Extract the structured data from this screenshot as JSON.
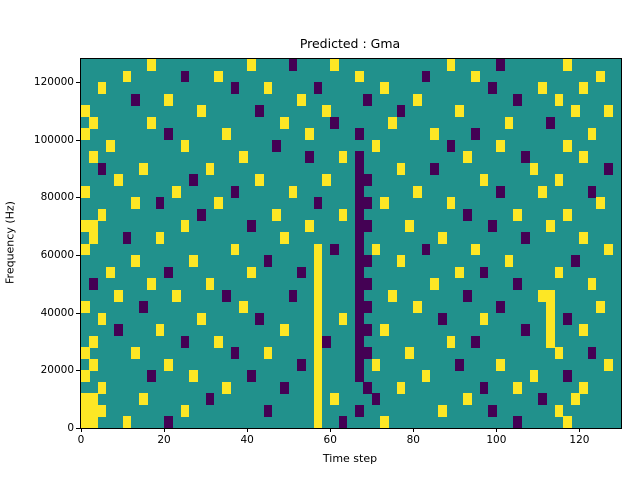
{
  "chart_data": {
    "type": "heatmap",
    "title": "Predicted : Gma",
    "xlabel": "Time step",
    "ylabel": "Frequency (Hz)",
    "xlim": [
      0,
      130
    ],
    "ylim": [
      0,
      128000
    ],
    "xticks": [
      0,
      20,
      40,
      60,
      80,
      100,
      120
    ],
    "yticks": [
      0,
      20000,
      40000,
      60000,
      80000,
      100000,
      120000
    ],
    "colors": {
      "background_mid": "#21918c",
      "high": "#fde725",
      "low": "#440154",
      "axes": "#000000",
      "figure_background": "#ffffff"
    },
    "grid_cols": 65,
    "grid_rows": 32,
    "x_units_per_col": 2,
    "hz_per_row": 4000,
    "cell_encoding": {
      "y": "high (yellow)",
      "p": "low (dark purple)",
      "unlisted": "mid (teal)"
    },
    "cells_note": "rows ordered top (124000-128000 Hz) to bottom (0-4000 Hz); column index * 2 = time step",
    "cells": [
      {
        "y": [
          8,
          20,
          30,
          44,
          58
        ],
        "p": [
          25,
          50
        ]
      },
      {
        "y": [
          5,
          16,
          33,
          47,
          62
        ],
        "p": [
          12,
          41
        ]
      },
      {
        "y": [
          2,
          22,
          36,
          55,
          60
        ],
        "p": [
          18,
          28,
          49
        ]
      },
      {
        "y": [
          10,
          26,
          40,
          57
        ],
        "p": [
          6,
          34,
          52
        ]
      },
      {
        "y": [
          0,
          14,
          29,
          45,
          59,
          63
        ],
        "p": [
          21,
          38
        ]
      },
      {
        "y": [
          1,
          8,
          24,
          37,
          51
        ],
        "p": [
          30,
          56
        ]
      },
      {
        "y": [
          0,
          17,
          27,
          42,
          61
        ],
        "p": [
          10,
          33,
          47
        ]
      },
      {
        "y": [
          3,
          12,
          35,
          50,
          58
        ],
        "p": [
          23,
          44
        ]
      },
      {
        "y": [
          1,
          19,
          31,
          46,
          60
        ],
        "p": [
          27,
          33,
          53
        ]
      },
      {
        "y": [
          7,
          15,
          38,
          54
        ],
        "p": [
          2,
          33,
          42,
          63
        ]
      },
      {
        "y": [
          4,
          21,
          29,
          48,
          57
        ],
        "p": [
          13,
          33,
          34
        ]
      },
      {
        "y": [
          0,
          11,
          25,
          40,
          55
        ],
        "p": [
          18,
          33,
          50,
          61
        ]
      },
      {
        "y": [
          6,
          16,
          36,
          44,
          62
        ],
        "p": [
          9,
          28,
          33,
          34
        ]
      },
      {
        "y": [
          2,
          23,
          31,
          52,
          58
        ],
        "p": [
          14,
          33,
          46
        ]
      },
      {
        "y": [
          0,
          1,
          12,
          27,
          39,
          56
        ],
        "p": [
          20,
          33,
          34,
          49
        ]
      },
      {
        "y": [
          1,
          9,
          24,
          43,
          60
        ],
        "p": [
          5,
          33,
          53
        ]
      },
      {
        "y": [
          0,
          18,
          28,
          35,
          47,
          63
        ],
        "p": [
          30,
          33,
          41
        ]
      },
      {
        "y": [
          6,
          13,
          28,
          38,
          51
        ],
        "p": [
          22,
          33,
          34,
          59
        ]
      },
      {
        "y": [
          3,
          20,
          28,
          45,
          57
        ],
        "p": [
          10,
          26,
          33,
          48
        ]
      },
      {
        "y": [
          8,
          15,
          28,
          42,
          61
        ],
        "p": [
          1,
          33,
          34,
          52
        ]
      },
      {
        "y": [
          4,
          11,
          28,
          37,
          55,
          56
        ],
        "p": [
          17,
          25,
          33,
          46
        ]
      },
      {
        "y": [
          0,
          19,
          28,
          40,
          56,
          62
        ],
        "p": [
          7,
          33,
          34,
          50
        ]
      },
      {
        "y": [
          2,
          14,
          28,
          31,
          48,
          56
        ],
        "p": [
          21,
          33,
          43,
          58
        ]
      },
      {
        "y": [
          9,
          24,
          28,
          36,
          56,
          60
        ],
        "p": [
          4,
          33,
          34,
          53
        ]
      },
      {
        "y": [
          1,
          16,
          28,
          44,
          56
        ],
        "p": [
          12,
          29,
          33,
          47
        ]
      },
      {
        "y": [
          0,
          6,
          22,
          28,
          39,
          57
        ],
        "p": [
          18,
          33,
          34,
          61
        ]
      },
      {
        "y": [
          1,
          10,
          28,
          35,
          50,
          63
        ],
        "p": [
          26,
          33,
          45
        ]
      },
      {
        "y": [
          0,
          13,
          28,
          41,
          54
        ],
        "p": [
          8,
          20,
          33,
          58
        ]
      },
      {
        "y": [
          2,
          17,
          28,
          38,
          52,
          60
        ],
        "p": [
          24,
          34,
          48
        ]
      },
      {
        "y": [
          0,
          1,
          7,
          28,
          30,
          46,
          59
        ],
        "p": [
          15,
          35,
          55
        ]
      },
      {
        "y": [
          0,
          1,
          2,
          12,
          28,
          43,
          57
        ],
        "p": [
          22,
          33,
          49
        ]
      },
      {
        "y": [
          0,
          1,
          5,
          28,
          36,
          58
        ],
        "p": [
          10,
          31,
          52
        ]
      }
    ]
  }
}
